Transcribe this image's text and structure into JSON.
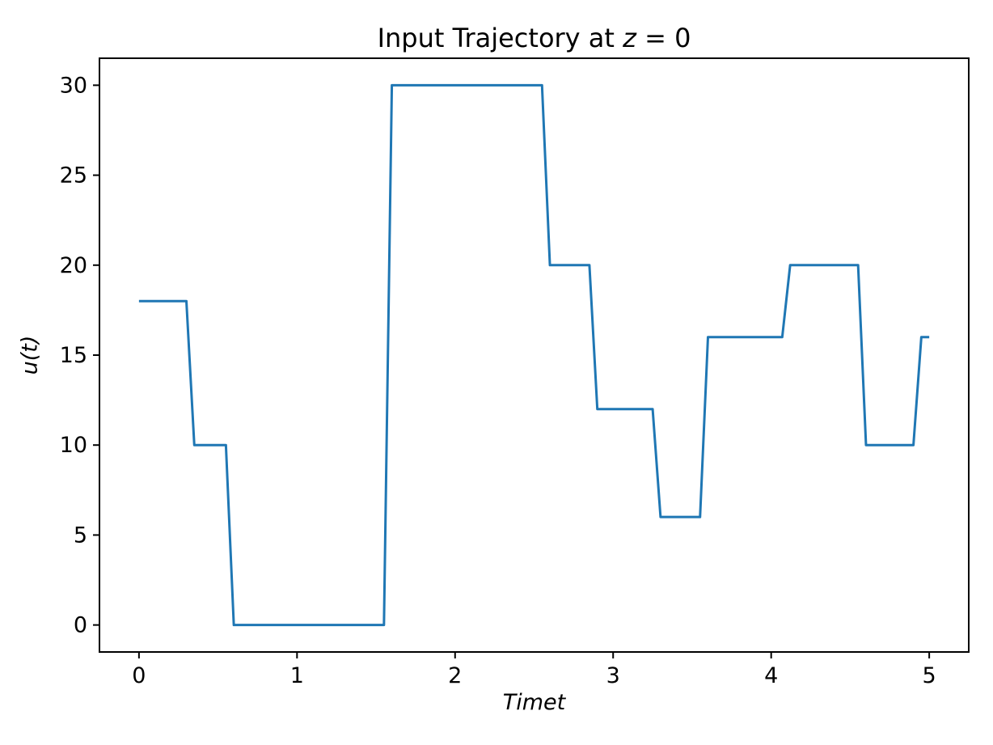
{
  "figure": {
    "background": "#ffffff",
    "title": {
      "prefix": "Input Trajectory at ",
      "variable": "z",
      "suffix": " = 0"
    },
    "xlabel": "Timet",
    "ylabel": "u(t)"
  },
  "chart_data": {
    "type": "line",
    "style": "piecewise-constant step trajectory",
    "title": "Input Trajectory at z = 0",
    "xlabel": "Timet",
    "ylabel": "u(t)",
    "line_color": "#1f77b4",
    "axis_color": "#000000",
    "grid": false,
    "legend_position": "none",
    "xlim": [
      -0.25,
      5.25
    ],
    "ylim": [
      -1.5,
      31.5
    ],
    "x_ticks": [
      0,
      1,
      2,
      3,
      4,
      5
    ],
    "y_ticks": [
      0,
      5,
      10,
      15,
      20,
      25,
      30
    ],
    "x": [
      0,
      0.3,
      0.35,
      0.55,
      0.6,
      1.55,
      1.6,
      2.55,
      2.6,
      2.85,
      2.9,
      3.25,
      3.3,
      3.55,
      3.6,
      4.07,
      4.12,
      4.55,
      4.6,
      4.9,
      4.95,
      5.0
    ],
    "y": [
      18,
      18,
      10,
      10,
      0,
      0,
      30,
      30,
      20,
      20,
      12,
      12,
      6,
      6,
      16,
      16,
      20,
      20,
      10,
      10,
      16,
      16
    ],
    "plateaus": [
      {
        "from": 0.0,
        "to": 0.3,
        "u": 18
      },
      {
        "from": 0.35,
        "to": 0.55,
        "u": 10
      },
      {
        "from": 0.6,
        "to": 1.55,
        "u": 0
      },
      {
        "from": 1.6,
        "to": 2.55,
        "u": 30
      },
      {
        "from": 2.6,
        "to": 2.85,
        "u": 20
      },
      {
        "from": 2.9,
        "to": 3.25,
        "u": 12
      },
      {
        "from": 3.3,
        "to": 3.55,
        "u": 6
      },
      {
        "from": 3.6,
        "to": 4.07,
        "u": 16
      },
      {
        "from": 4.12,
        "to": 4.55,
        "u": 20
      },
      {
        "from": 4.6,
        "to": 4.9,
        "u": 10
      },
      {
        "from": 4.95,
        "to": 5.0,
        "u": 16
      }
    ]
  }
}
